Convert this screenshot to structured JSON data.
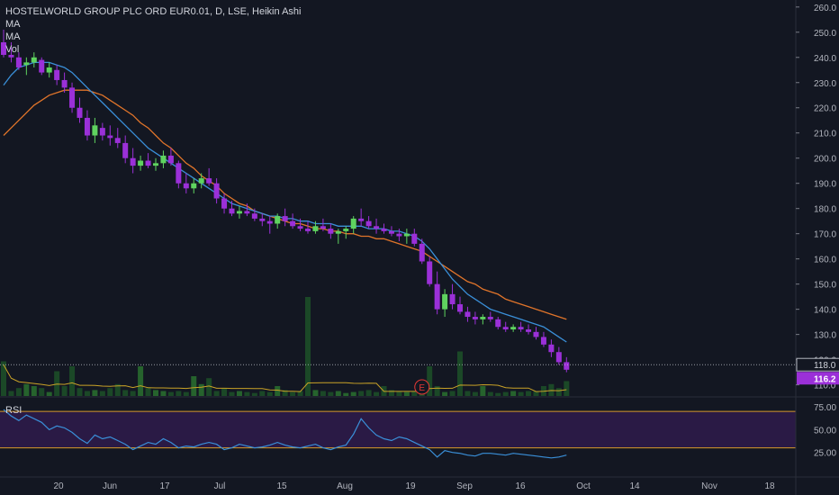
{
  "legend": {
    "title": "HOSTELWORLD GROUP PLC ORD EUR0.01, D, LSE, Heikin Ashi",
    "ma1": "MA",
    "ma2": "MA",
    "vol": "Vol"
  },
  "rsi_label": "RSI",
  "colors": {
    "background": "#131722",
    "candle_up": "#5fd35f",
    "candle_down": "#9b30d8",
    "ma_fast": "#3a8fd8",
    "ma_slow": "#e0742a",
    "vol_up": "#1f5a2a",
    "vol_down": "#1f5a2a",
    "vol_ma": "#c9a227",
    "rsi_line": "#3a8fd8",
    "rsi_band": "#2a1a45",
    "rsi_bounds": "#d89a2a",
    "last_price_badge": "#9b30d8"
  },
  "axis": {
    "price_ticks": [
      "260.0",
      "250.0",
      "240.0",
      "230.0",
      "220.0",
      "210.0",
      "200.0",
      "190.0",
      "180.0",
      "170.0",
      "160.0",
      "150.0",
      "140.0",
      "130.0",
      "120.0",
      "110.0"
    ],
    "price_marker": "118.0",
    "last_price": "116.2",
    "rsi_ticks": [
      "75.00",
      "50.00",
      "25.00"
    ],
    "time_ticks": [
      "20",
      "Jun",
      "17",
      "Jul",
      "15",
      "Aug",
      "19",
      "Sep",
      "16",
      "Oct",
      "14",
      "Nov",
      "18"
    ],
    "earnings_marker": "E"
  },
  "chart_data": {
    "type": "candlestick",
    "title": "HOSTELWORLD GROUP PLC ORD EUR0.01, D, LSE, Heikin Ashi",
    "ylim": [
      107,
      261
    ],
    "rsi_ylim": [
      0,
      80
    ],
    "rsi_bounds": [
      70,
      30
    ],
    "candles": [
      [
        246,
        251,
        240,
        241
      ],
      [
        241,
        246,
        238,
        240
      ],
      [
        240,
        242,
        235,
        236
      ],
      [
        237,
        240,
        233,
        238
      ],
      [
        238,
        242,
        236,
        240
      ],
      [
        239,
        240,
        233,
        234
      ],
      [
        234,
        238,
        232,
        236
      ],
      [
        235,
        237,
        229,
        231
      ],
      [
        231,
        234,
        226,
        228
      ],
      [
        228,
        230,
        218,
        220
      ],
      [
        220,
        224,
        214,
        216
      ],
      [
        216,
        219,
        207,
        209
      ],
      [
        209,
        216,
        206,
        213
      ],
      [
        212,
        214,
        207,
        209
      ],
      [
        209,
        213,
        205,
        208
      ],
      [
        208,
        212,
        204,
        206
      ],
      [
        206,
        209,
        198,
        200
      ],
      [
        200,
        204,
        194,
        197
      ],
      [
        197,
        201,
        195,
        199
      ],
      [
        199,
        202,
        196,
        197
      ],
      [
        197,
        200,
        195,
        198
      ],
      [
        198,
        203,
        196,
        201
      ],
      [
        201,
        204,
        197,
        198
      ],
      [
        198,
        199,
        188,
        190
      ],
      [
        190,
        194,
        186,
        188
      ],
      [
        188,
        192,
        186,
        190
      ],
      [
        190,
        194,
        188,
        192
      ],
      [
        192,
        196,
        189,
        190
      ],
      [
        190,
        192,
        182,
        184
      ],
      [
        184,
        186,
        178,
        180
      ],
      [
        180,
        183,
        177,
        178
      ],
      [
        178,
        181,
        176,
        179
      ],
      [
        179,
        182,
        177,
        178
      ],
      [
        178,
        180,
        175,
        176
      ],
      [
        176,
        178,
        173,
        175
      ],
      [
        175,
        177,
        170,
        174
      ],
      [
        174,
        178,
        172,
        177
      ],
      [
        177,
        180,
        173,
        175
      ],
      [
        175,
        178,
        172,
        173
      ],
      [
        173,
        176,
        171,
        172
      ],
      [
        172,
        175,
        170,
        171
      ],
      [
        171,
        175,
        170,
        173
      ],
      [
        173,
        176,
        171,
        172
      ],
      [
        172,
        174,
        168,
        170
      ],
      [
        170,
        172,
        166,
        171
      ],
      [
        171,
        173,
        168,
        172
      ],
      [
        172,
        177,
        170,
        176
      ],
      [
        176,
        180,
        173,
        175
      ],
      [
        175,
        177,
        172,
        173
      ],
      [
        173,
        176,
        170,
        172
      ],
      [
        172,
        174,
        170,
        171
      ],
      [
        171,
        173,
        169,
        170
      ],
      [
        170,
        172,
        167,
        169
      ],
      [
        169,
        172,
        166,
        170
      ],
      [
        170,
        172,
        165,
        166
      ],
      [
        166,
        168,
        158,
        159
      ],
      [
        159,
        161,
        149,
        150
      ],
      [
        150,
        155,
        138,
        140
      ],
      [
        140,
        148,
        137,
        146
      ],
      [
        146,
        150,
        140,
        142
      ],
      [
        142,
        145,
        138,
        139
      ],
      [
        139,
        141,
        135,
        137
      ],
      [
        137,
        139,
        134,
        136
      ],
      [
        136,
        138,
        134,
        137
      ],
      [
        137,
        139,
        135,
        136
      ],
      [
        136,
        137,
        132,
        133
      ],
      [
        133,
        135,
        131,
        132
      ],
      [
        132,
        134,
        131,
        133
      ],
      [
        133,
        135,
        131,
        132
      ],
      [
        132,
        134,
        130,
        131
      ],
      [
        131,
        133,
        128,
        129
      ],
      [
        129,
        131,
        125,
        126
      ],
      [
        126,
        128,
        121,
        123
      ],
      [
        123,
        125,
        118,
        119
      ],
      [
        119,
        121,
        115,
        116
      ]
    ],
    "ma_fast": [
      229,
      233,
      236,
      237,
      238,
      238,
      238,
      237,
      236,
      234,
      231,
      228,
      225,
      222,
      219,
      216,
      213,
      210,
      207,
      204,
      202,
      200,
      198,
      196,
      194,
      192,
      190,
      188,
      186,
      184,
      182,
      181,
      180,
      179,
      178,
      177,
      177,
      176,
      176,
      175,
      175,
      174,
      174,
      174,
      173,
      173,
      173,
      173,
      172,
      172,
      172,
      171,
      171,
      170,
      169,
      167,
      164,
      160,
      156,
      152,
      149,
      146,
      144,
      142,
      140,
      139,
      138,
      137,
      136,
      135,
      134,
      133,
      131,
      129,
      127
    ],
    "ma_slow": [
      209,
      212,
      215,
      218,
      221,
      223,
      225,
      226,
      227,
      227,
      227,
      227,
      226,
      225,
      223,
      221,
      219,
      217,
      214,
      212,
      209,
      206,
      204,
      201,
      198,
      196,
      193,
      191,
      189,
      186,
      184,
      182,
      181,
      179,
      178,
      177,
      176,
      175,
      174,
      174,
      173,
      172,
      172,
      171,
      171,
      170,
      170,
      169,
      169,
      168,
      168,
      167,
      166,
      165,
      164,
      163,
      161,
      159,
      157,
      155,
      153,
      151,
      150,
      148,
      147,
      146,
      144,
      143,
      142,
      141,
      140,
      139,
      138,
      137,
      136
    ],
    "volume": [
      0.35,
      0.05,
      0.08,
      0.12,
      0.1,
      0.08,
      0.04,
      0.25,
      0.1,
      0.3,
      0.08,
      0.05,
      0.06,
      0.05,
      0.08,
      0.12,
      0.06,
      0.05,
      0.3,
      0.08,
      0.06,
      0.05,
      0.04,
      0.05,
      0.04,
      0.2,
      0.12,
      0.18,
      0.05,
      0.08,
      0.04,
      0.05,
      0.04,
      0.03,
      0.05,
      0.04,
      0.1,
      0.06,
      0.04,
      0.05,
      1.0,
      0.06,
      0.05,
      0.04,
      0.05,
      0.03,
      0.04,
      0.05,
      0.06,
      0.04,
      0.1,
      0.06,
      0.05,
      0.04,
      0.05,
      0.08,
      0.3,
      0.1,
      0.04,
      0.05,
      0.45,
      0.05,
      0.04,
      0.1,
      0.04,
      0.03,
      0.04,
      0.05,
      0.04,
      0.05,
      0.05,
      0.1,
      0.12,
      0.08,
      0.15
    ],
    "rsi": [
      72,
      65,
      60,
      66,
      62,
      58,
      50,
      54,
      52,
      47,
      40,
      35,
      44,
      40,
      42,
      38,
      34,
      28,
      32,
      36,
      34,
      40,
      36,
      30,
      32,
      31,
      34,
      36,
      34,
      28,
      30,
      34,
      32,
      30,
      31,
      33,
      36,
      33,
      31,
      30,
      32,
      34,
      30,
      28,
      31,
      33,
      45,
      62,
      52,
      44,
      40,
      38,
      42,
      40,
      36,
      32,
      28,
      20,
      27,
      25,
      24,
      22,
      21,
      24,
      24,
      23,
      22,
      24,
      23,
      22,
      21,
      20,
      19,
      20,
      22
    ]
  }
}
